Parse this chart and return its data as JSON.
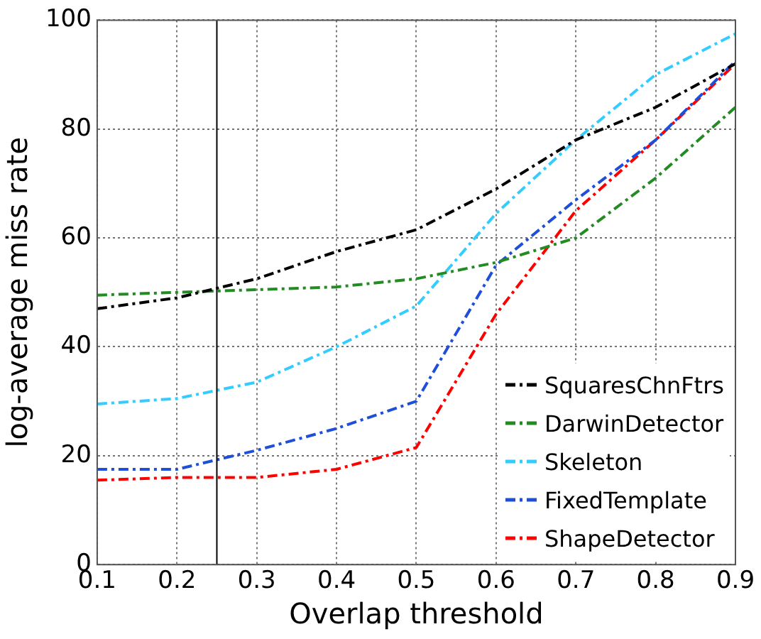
{
  "chart_data": {
    "type": "line",
    "xlabel": "Overlap threshold",
    "ylabel": "log-average miss rate",
    "x": [
      0.1,
      0.2,
      0.3,
      0.4,
      0.5,
      0.6,
      0.7,
      0.8,
      0.9
    ],
    "series": [
      {
        "name": "SquaresChnFtrs",
        "color": "#000000",
        "values": [
          47,
          49,
          52.5,
          57.5,
          61.5,
          69,
          78,
          84,
          92
        ]
      },
      {
        "name": "DarwinDetector",
        "color": "#228b22",
        "values": [
          49.5,
          50,
          50.5,
          51,
          52.5,
          55.5,
          60,
          71,
          84
        ]
      },
      {
        "name": "Skeleton",
        "color": "#33ccff",
        "values": [
          29.5,
          30.5,
          33.5,
          40,
          47.5,
          64.5,
          78,
          90,
          97.5
        ]
      },
      {
        "name": "FixedTemplate",
        "color": "#1f4fd8",
        "values": [
          17.5,
          17.5,
          21,
          25,
          30,
          55,
          67,
          78,
          92.5
        ]
      },
      {
        "name": "ShapeDetector",
        "color": "#ff0000",
        "values": [
          15.5,
          16,
          16,
          17.5,
          21.5,
          46,
          65,
          78,
          92
        ]
      }
    ],
    "xlim": [
      0.1,
      0.9
    ],
    "xticks": [
      0.1,
      0.2,
      0.3,
      0.4,
      0.5,
      0.6,
      0.7,
      0.8,
      0.9
    ],
    "ylim": [
      0,
      100
    ],
    "yticks": [
      0,
      20,
      40,
      60,
      80,
      100
    ],
    "ref_lines": [
      {
        "axis": "x",
        "value": 0.25,
        "color": "#000000",
        "line_style": "solid"
      }
    ],
    "grid": true,
    "legend": "bottom right",
    "marker": "none",
    "line_style": "dashed"
  }
}
